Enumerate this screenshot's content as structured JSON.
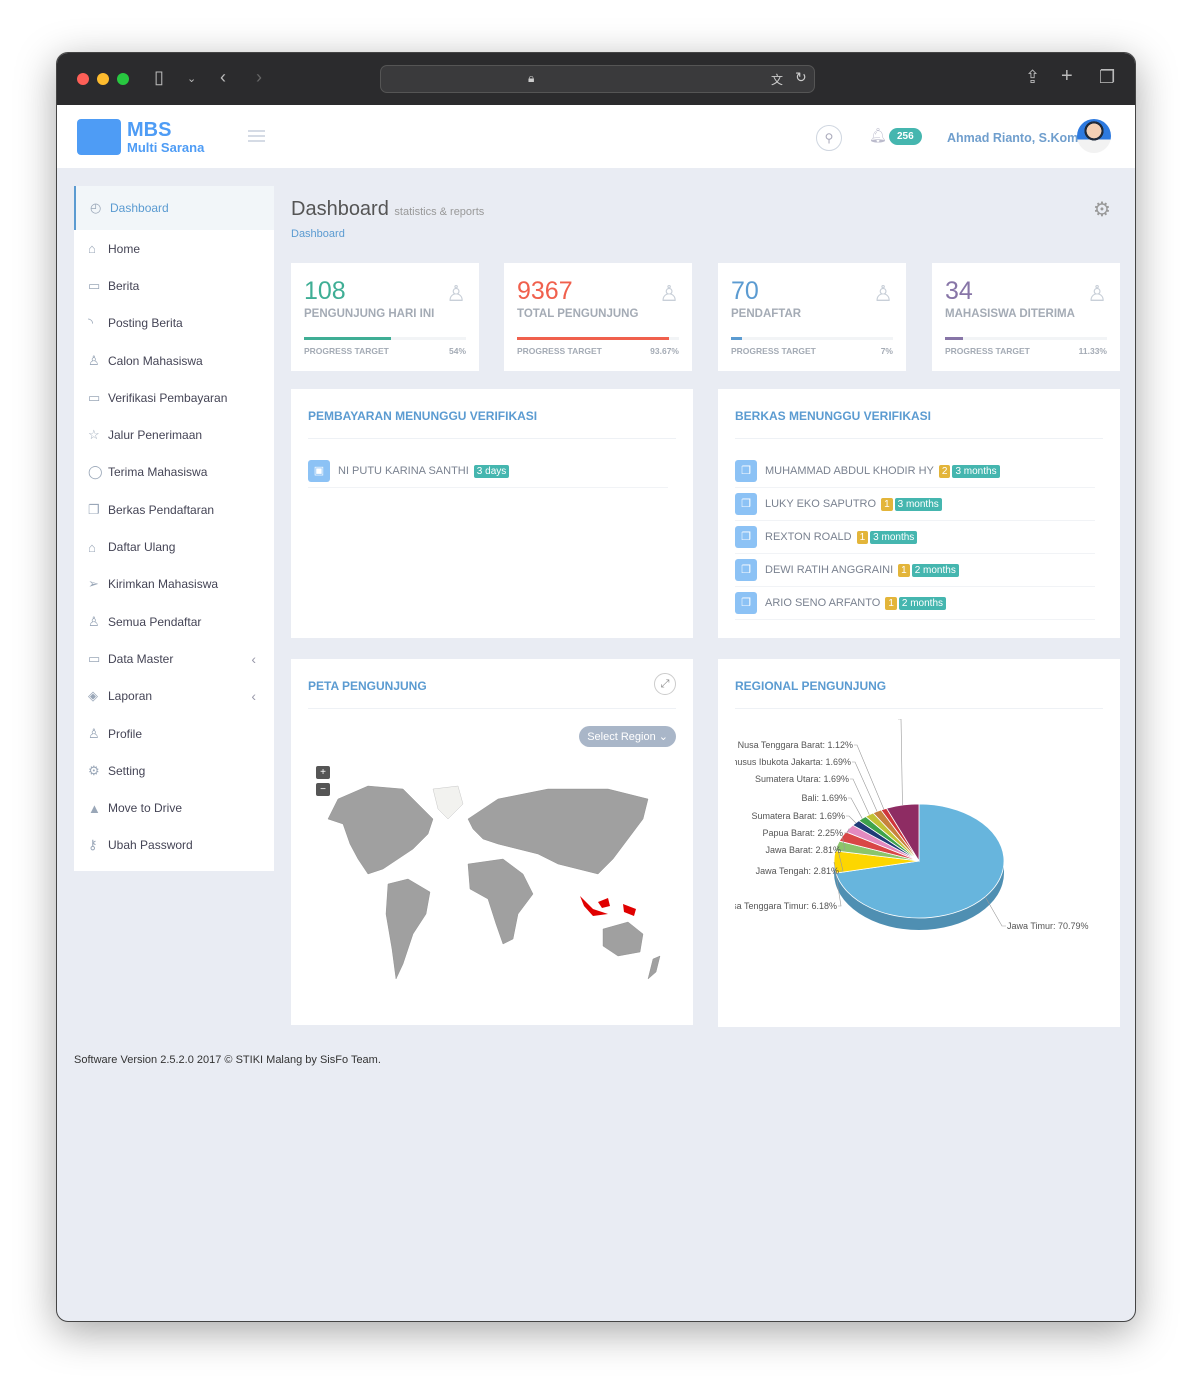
{
  "browser": {
    "icons": [
      "sidebar-icon",
      "chevron-down-icon",
      "back-icon",
      "forward-icon",
      "lock-icon",
      "translate-icon",
      "reload-icon",
      "share-icon",
      "new-tab-icon",
      "tabs-icon"
    ]
  },
  "header": {
    "brand_line1": "MBS",
    "brand_line2": "Multi Sarana",
    "notif_count": "256",
    "user_name": "Ahmad Rianto, S.Kom"
  },
  "sidebar": {
    "items": [
      {
        "label": "Dashboard",
        "icon": "dashboard-icon",
        "glyph": "◴",
        "active": true
      },
      {
        "label": "Home",
        "icon": "home-icon",
        "glyph": "⌂"
      },
      {
        "label": "Berita",
        "icon": "comment-icon",
        "glyph": "▭"
      },
      {
        "label": "Posting Berita",
        "icon": "rss-icon",
        "glyph": "◝"
      },
      {
        "label": "Calon Mahasiswa",
        "icon": "user-icon",
        "glyph": "♙"
      },
      {
        "label": "Verifikasi Pembayaran",
        "icon": "wallet-icon",
        "glyph": "▭"
      },
      {
        "label": "Jalur Penerimaan",
        "icon": "star-icon",
        "glyph": "☆"
      },
      {
        "label": "Terima Mahasiswa",
        "icon": "check-circle-icon",
        "glyph": "◯"
      },
      {
        "label": "Berkas Pendaftaran",
        "icon": "docs-icon",
        "glyph": "❐"
      },
      {
        "label": "Daftar Ulang",
        "icon": "graduation-icon",
        "glyph": "⌂"
      },
      {
        "label": "Kirimkan Mahasiswa",
        "icon": "paper-plane-icon",
        "glyph": "➢"
      },
      {
        "label": "Semua Pendaftar",
        "icon": "user-follow-icon",
        "glyph": "♙"
      },
      {
        "label": "Data Master",
        "icon": "folder-icon",
        "glyph": "▭",
        "submenu": true
      },
      {
        "label": "Laporan",
        "icon": "layers-icon",
        "glyph": "◈",
        "submenu": true
      },
      {
        "label": "Profile",
        "icon": "user-icon",
        "glyph": "♙"
      },
      {
        "label": "Setting",
        "icon": "settings-icon",
        "glyph": "⚙"
      },
      {
        "label": "Move to Drive",
        "icon": "drive-icon",
        "glyph": "▲"
      },
      {
        "label": "Ubah Password",
        "icon": "key-icon",
        "glyph": "⚷"
      }
    ]
  },
  "page": {
    "title": "Dashboard",
    "subtitle": "statistics & reports",
    "breadcrumb": "Dashboard"
  },
  "stats": [
    {
      "value": "108",
      "label": "PENGUNJUNG HARI INI",
      "progress_label": "PROGRESS TARGET",
      "progress": "54%",
      "color": "#3fae95"
    },
    {
      "value": "9367",
      "label": "TOTAL PENGUNJUNG",
      "progress_label": "PROGRESS TARGET",
      "progress": "93.67%",
      "color": "#f0604d"
    },
    {
      "value": "70",
      "label": "PENDAFTAR",
      "progress_label": "PROGRESS TARGET",
      "progress": "7%",
      "color": "#5b9bd1"
    },
    {
      "value": "34",
      "label": "MAHASISWA DITERIMA",
      "progress_label": "PROGRESS TARGET",
      "progress": "11.33%",
      "color": "#8775a7"
    }
  ],
  "payments": {
    "title": "PEMBAYARAN MENUNGGU VERIFIKASI",
    "items": [
      {
        "name": "NI PUTU KARINA SANTHI",
        "time": "3 days"
      }
    ]
  },
  "files": {
    "title": "BERKAS MENUNGGU VERIFIKASI",
    "items": [
      {
        "name": "MUHAMMAD ABDUL KHODIR HY",
        "count": "2",
        "time": "3 months"
      },
      {
        "name": "LUKY EKO SAPUTRO",
        "count": "1",
        "time": "3 months"
      },
      {
        "name": "REXTON ROALD",
        "count": "1",
        "time": "3 months"
      },
      {
        "name": "DEWI RATIH ANGGRAINI",
        "count": "1",
        "time": "2 months"
      },
      {
        "name": "ARIO SENO ARFANTO",
        "count": "1",
        "time": "2 months"
      }
    ]
  },
  "map": {
    "title": "PETA PENGUNJUNG",
    "select_label": "Select Region",
    "zoom_in": "+",
    "zoom_out": "−",
    "highlight_country": "Indonesia",
    "highlight_color": "#e00000"
  },
  "chart_data": {
    "type": "pie",
    "title": "REGIONAL PENGUNJUNG",
    "series": [
      {
        "name": "Jawa Timur",
        "value": 70.79,
        "color": "#67b5dd"
      },
      {
        "name": "Nusa Tenggara Timur",
        "value": 6.18,
        "color": "#fdd600"
      },
      {
        "name": "Jawa Tengah",
        "value": 2.81,
        "color": "#8bc56a"
      },
      {
        "name": "Jawa Barat",
        "value": 2.81,
        "color": "#d94646"
      },
      {
        "name": "Papua Barat",
        "value": 2.25,
        "color": "#e38ac0"
      },
      {
        "name": "Sumatera Barat",
        "value": 1.69,
        "color": "#1f3c77"
      },
      {
        "name": "Bali",
        "value": 1.69,
        "color": "#3ea34b"
      },
      {
        "name": "Sumatera Utara",
        "value": 1.69,
        "color": "#c2c236"
      },
      {
        "name": "Daerah Khusus Ibukota Jakarta",
        "value": 1.69,
        "color": "#c7813c"
      },
      {
        "name": "Nusa Tenggara Barat",
        "value": 1.12,
        "color": "#d0363a"
      },
      {
        "name": "",
        "value": 6.16,
        "color": "#8e2c63"
      }
    ]
  },
  "footer": "Software Version 2.5.2.0 2017 © STIKI Malang by SisFo Team."
}
